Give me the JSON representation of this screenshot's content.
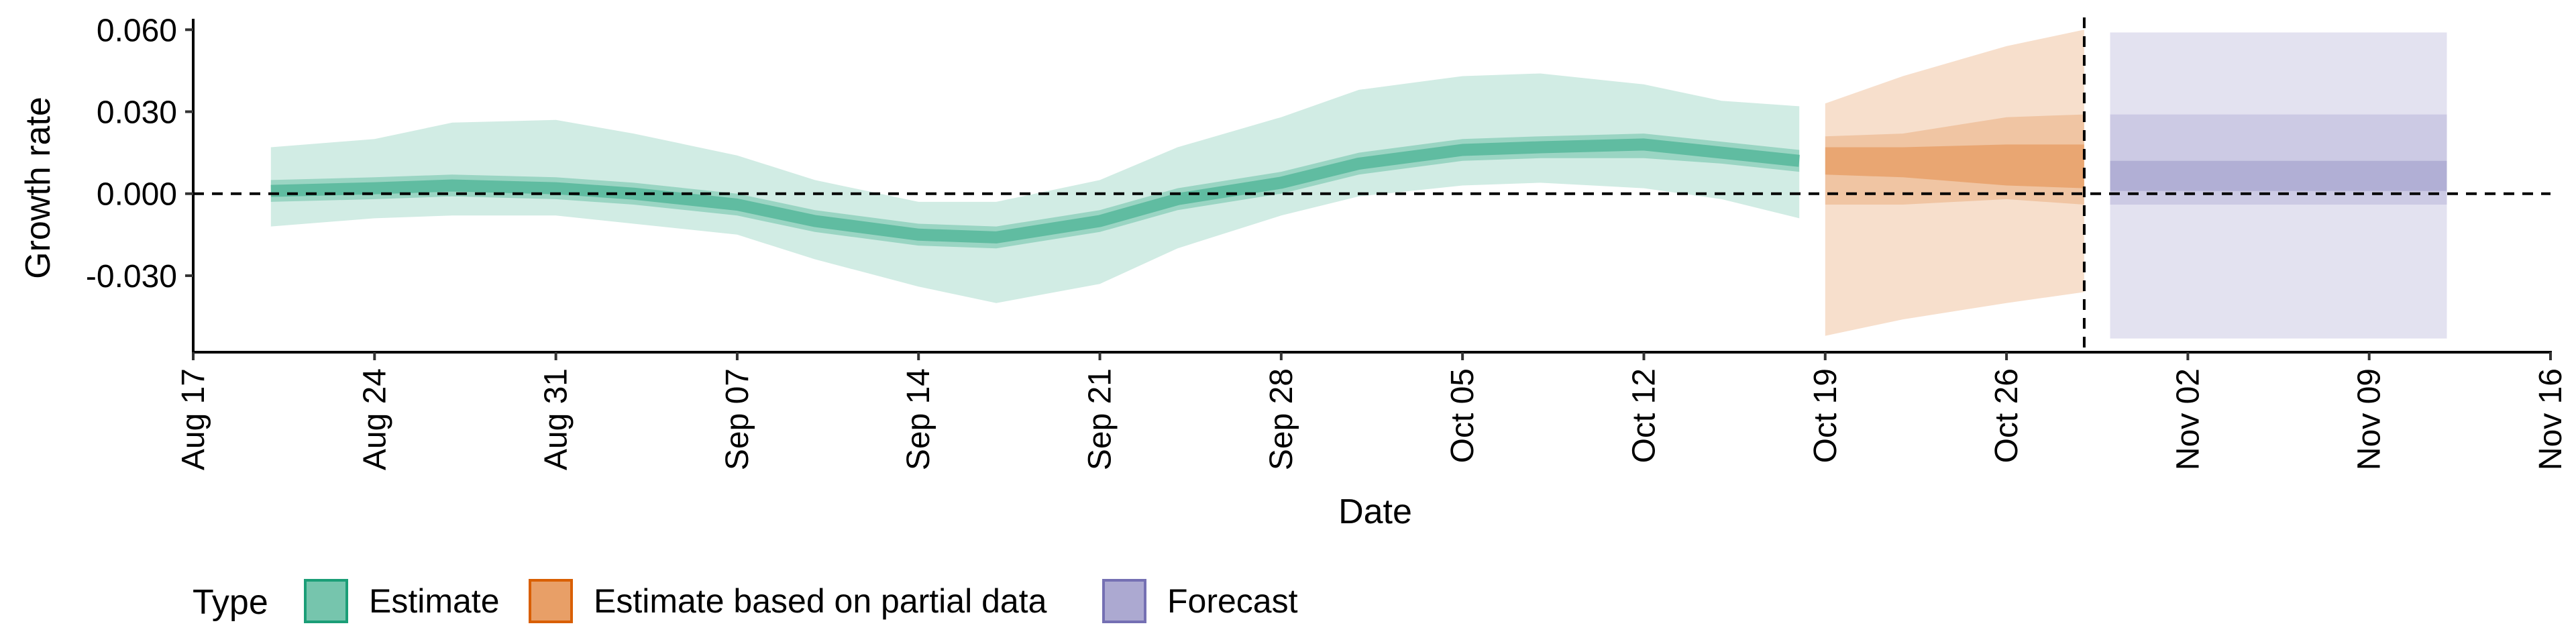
{
  "chart_data": {
    "type": "area",
    "xlabel": "Date",
    "ylabel": "Growth rate",
    "x_ticks": [
      "Aug 17",
      "Aug 24",
      "Aug 31",
      "Sep 07",
      "Sep 14",
      "Sep 21",
      "Sep 28",
      "Oct 05",
      "Oct 12",
      "Oct 19",
      "Oct 26",
      "Nov 02",
      "Nov 09",
      "Nov 16"
    ],
    "y_ticks": [
      "0.060",
      "0.030",
      "0.000",
      "-0.030"
    ],
    "xlim": [
      "2020-08-17",
      "2020-11-16"
    ],
    "ylim": [
      -0.058,
      0.064
    ],
    "grid": false,
    "reference_lines": [
      {
        "axis": "y",
        "value": 0.0,
        "style": "dashed"
      },
      {
        "axis": "x",
        "value": "2020-10-29",
        "style": "dashed"
      }
    ],
    "legend": {
      "title": "Type",
      "placement": "bottom-left",
      "entries": [
        {
          "label": "Estimate",
          "color": "#1b9e77"
        },
        {
          "label": "Estimate based on partial data",
          "color": "#d95f02"
        },
        {
          "label": "Forecast",
          "color": "#7570b3"
        }
      ]
    },
    "series": [
      {
        "name": "Estimate",
        "color": "#1b9e77",
        "x": [
          "2020-08-20",
          "2020-08-24",
          "2020-08-27",
          "2020-08-31",
          "2020-09-03",
          "2020-09-07",
          "2020-09-10",
          "2020-09-14",
          "2020-09-17",
          "2020-09-21",
          "2020-09-24",
          "2020-09-28",
          "2020-10-01",
          "2020-10-05",
          "2020-10-08",
          "2020-10-12",
          "2020-10-15",
          "2020-10-18"
        ],
        "median": [
          0.001,
          0.002,
          0.003,
          0.002,
          0.0,
          -0.004,
          -0.01,
          -0.015,
          -0.016,
          -0.01,
          -0.002,
          0.004,
          0.011,
          0.016,
          0.017,
          0.018,
          0.015,
          0.012
        ],
        "lower_50": [
          -0.003,
          -0.002,
          -0.001,
          -0.002,
          -0.004,
          -0.008,
          -0.014,
          -0.019,
          -0.02,
          -0.014,
          -0.006,
          0.0,
          0.007,
          0.012,
          0.013,
          0.013,
          0.011,
          0.008
        ],
        "upper_50": [
          0.005,
          0.006,
          0.007,
          0.006,
          0.004,
          0.0,
          -0.006,
          -0.011,
          -0.012,
          -0.006,
          0.002,
          0.008,
          0.015,
          0.02,
          0.021,
          0.022,
          0.019,
          0.016
        ],
        "lower_90": [
          -0.012,
          -0.009,
          -0.008,
          -0.008,
          -0.011,
          -0.015,
          -0.024,
          -0.034,
          -0.04,
          -0.033,
          -0.02,
          -0.008,
          -0.001,
          0.003,
          0.004,
          0.002,
          -0.002,
          -0.009
        ],
        "upper_90": [
          0.017,
          0.02,
          0.026,
          0.027,
          0.022,
          0.014,
          0.005,
          -0.003,
          -0.003,
          0.005,
          0.017,
          0.028,
          0.038,
          0.043,
          0.044,
          0.04,
          0.034,
          0.032
        ]
      },
      {
        "name": "Estimate based on partial data",
        "color": "#d95f02",
        "x": [
          "2020-10-19",
          "2020-10-22",
          "2020-10-26",
          "2020-10-29"
        ],
        "median": [
          0.012,
          0.012,
          0.011,
          0.011
        ],
        "lower_50": [
          0.007,
          0.006,
          0.003,
          0.002
        ],
        "upper_50": [
          0.017,
          0.017,
          0.018,
          0.018
        ],
        "lower_90": [
          -0.004,
          -0.004,
          -0.002,
          -0.004
        ],
        "upper_90": [
          0.021,
          0.022,
          0.028,
          0.029
        ],
        "lower_max": [
          -0.052,
          -0.046,
          -0.04,
          -0.036
        ],
        "upper_max": [
          0.033,
          0.043,
          0.054,
          0.06
        ]
      },
      {
        "name": "Forecast",
        "color": "#7570b3",
        "x": [
          "2020-10-30",
          "2020-11-12"
        ],
        "median": [
          0.007,
          0.007
        ],
        "lower_50": [
          0.001,
          0.001
        ],
        "upper_50": [
          0.012,
          0.012
        ],
        "lower_90": [
          -0.004,
          -0.004
        ],
        "upper_90": [
          0.029,
          0.029
        ],
        "lower_max": [
          -0.053,
          -0.053
        ],
        "upper_max": [
          0.059,
          0.059
        ]
      }
    ]
  }
}
